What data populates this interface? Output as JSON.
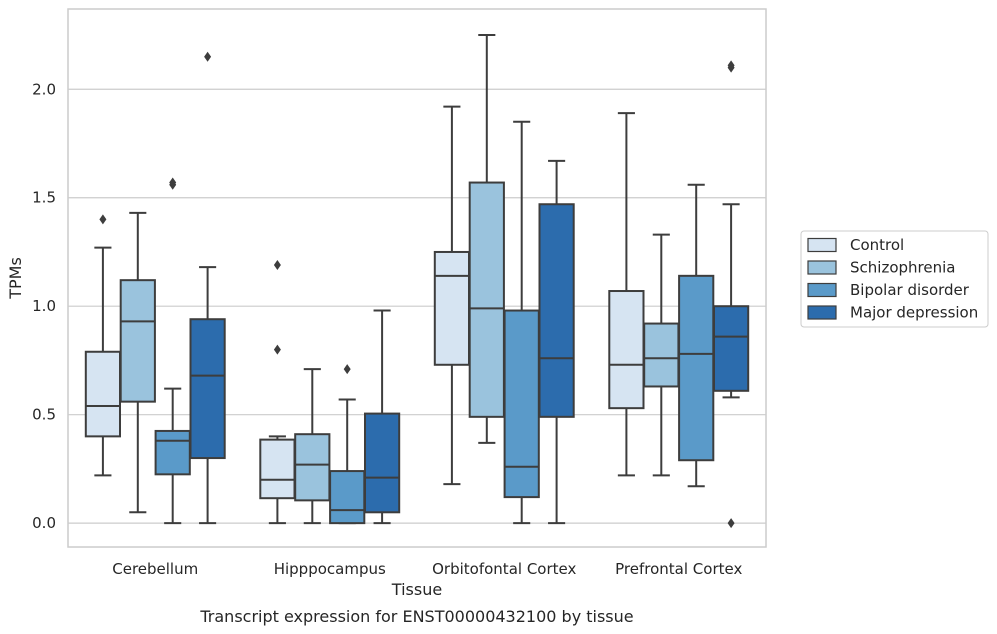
{
  "caption": "Transcript expression for ENST00000432100 by tissue",
  "chart_data": {
    "type": "box",
    "xlabel": "Tissue",
    "ylabel": "TPMs",
    "ylim": [
      -0.11,
      2.37
    ],
    "yticks": [
      0.0,
      0.5,
      1.0,
      1.5,
      2.0
    ],
    "ytick_labels": [
      "0.0",
      "0.5",
      "1.0",
      "1.5",
      "2.0"
    ],
    "grid": "horizontal",
    "legend_position": "right",
    "categories": [
      "Cerebellum",
      "Hipppocampus",
      "Orbitofontal Cortex",
      "Prefrontal Cortex"
    ],
    "series": [
      {
        "name": "Control",
        "color": "#d6e4f2",
        "boxes": [
          {
            "whislo": 0.22,
            "q1": 0.4,
            "med": 0.54,
            "q3": 0.79,
            "whishi": 1.27,
            "fliers": [
              1.4
            ]
          },
          {
            "whislo": 0.0,
            "q1": 0.115,
            "med": 0.2,
            "q3": 0.385,
            "whishi": 0.4,
            "fliers": [
              0.8,
              1.19
            ]
          },
          {
            "whislo": 0.18,
            "q1": 0.73,
            "med": 1.14,
            "q3": 1.25,
            "whishi": 1.92,
            "fliers": []
          },
          {
            "whislo": 0.22,
            "q1": 0.53,
            "med": 0.73,
            "q3": 1.07,
            "whishi": 1.89,
            "fliers": []
          }
        ]
      },
      {
        "name": "Schizophrenia",
        "color": "#9ac3dd",
        "boxes": [
          {
            "whislo": 0.05,
            "q1": 0.56,
            "med": 0.93,
            "q3": 1.12,
            "whishi": 1.43,
            "fliers": []
          },
          {
            "whislo": 0.0,
            "q1": 0.105,
            "med": 0.27,
            "q3": 0.41,
            "whishi": 0.71,
            "fliers": []
          },
          {
            "whislo": 0.37,
            "q1": 0.49,
            "med": 0.99,
            "q3": 1.57,
            "whishi": 2.25,
            "fliers": []
          },
          {
            "whislo": 0.22,
            "q1": 0.63,
            "med": 0.76,
            "q3": 0.92,
            "whishi": 1.33,
            "fliers": []
          }
        ]
      },
      {
        "name": "Bipolar disorder",
        "color": "#5a9ac9",
        "boxes": [
          {
            "whislo": 0.0,
            "q1": 0.225,
            "med": 0.38,
            "q3": 0.425,
            "whishi": 0.62,
            "fliers": [
              1.56,
              1.57
            ]
          },
          {
            "whislo": 0.0,
            "q1": 0.0,
            "med": 0.06,
            "q3": 0.24,
            "whishi": 0.57,
            "fliers": [
              0.71
            ]
          },
          {
            "whislo": 0.0,
            "q1": 0.12,
            "med": 0.26,
            "q3": 0.98,
            "whishi": 1.85,
            "fliers": []
          },
          {
            "whislo": 0.17,
            "q1": 0.29,
            "med": 0.78,
            "q3": 1.14,
            "whishi": 1.56,
            "fliers": []
          }
        ]
      },
      {
        "name": "Major depression",
        "color": "#2c6cad",
        "boxes": [
          {
            "whislo": 0.0,
            "q1": 0.3,
            "med": 0.68,
            "q3": 0.94,
            "whishi": 1.18,
            "fliers": [
              2.15
            ]
          },
          {
            "whislo": 0.0,
            "q1": 0.05,
            "med": 0.21,
            "q3": 0.505,
            "whishi": 0.98,
            "fliers": []
          },
          {
            "whislo": 0.0,
            "q1": 0.49,
            "med": 0.76,
            "q3": 1.47,
            "whishi": 1.67,
            "fliers": []
          },
          {
            "whislo": 0.58,
            "q1": 0.61,
            "med": 0.86,
            "q3": 1.0,
            "whishi": 1.47,
            "fliers": [
              0.0,
              2.1,
              2.11
            ]
          }
        ]
      }
    ]
  }
}
